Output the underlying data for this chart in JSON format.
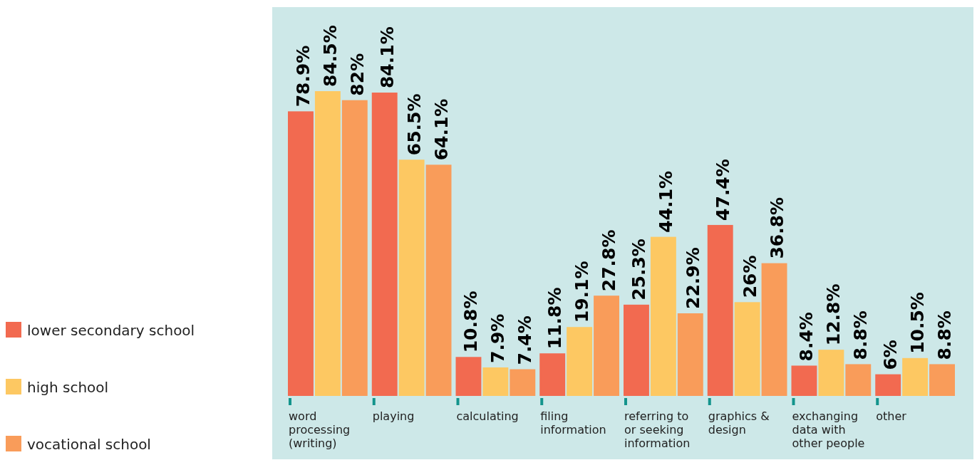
{
  "chart_data": {
    "type": "bar",
    "categories": [
      "word processing (writing)",
      "playing",
      "calculating",
      "filing information",
      "referring to or seeking information",
      "graphics & design",
      "exchanging data with other people",
      "other"
    ],
    "series": [
      {
        "name": "lower secondary school",
        "color": "#f26a50",
        "values": [
          78.9,
          84.1,
          10.8,
          11.8,
          25.3,
          47.4,
          8.4,
          6
        ],
        "value_labels": [
          "78.9%",
          "84.1%",
          "10.8%",
          "11.8%",
          "25.3%",
          "47.4%",
          "8.4%",
          "6%"
        ]
      },
      {
        "name": "high school",
        "color": "#fdc862",
        "values": [
          84.5,
          65.5,
          7.9,
          19.1,
          44.1,
          26,
          12.8,
          10.5
        ],
        "value_labels": [
          "84.5%",
          "65.5%",
          "7.9%",
          "19.1%",
          "44.1%",
          "26%",
          "12.8%",
          "10.5%"
        ]
      },
      {
        "name": "vocational school",
        "color": "#f99c5a",
        "values": [
          82,
          64.1,
          7.4,
          27.8,
          22.9,
          36.8,
          8.8,
          8.8
        ],
        "value_labels": [
          "82%",
          "64.1%",
          "7.4%",
          "27.8%",
          "22.9%",
          "36.8%",
          "8.8%",
          "8.8%"
        ]
      }
    ],
    "legend": "left",
    "relative": false
  }
}
